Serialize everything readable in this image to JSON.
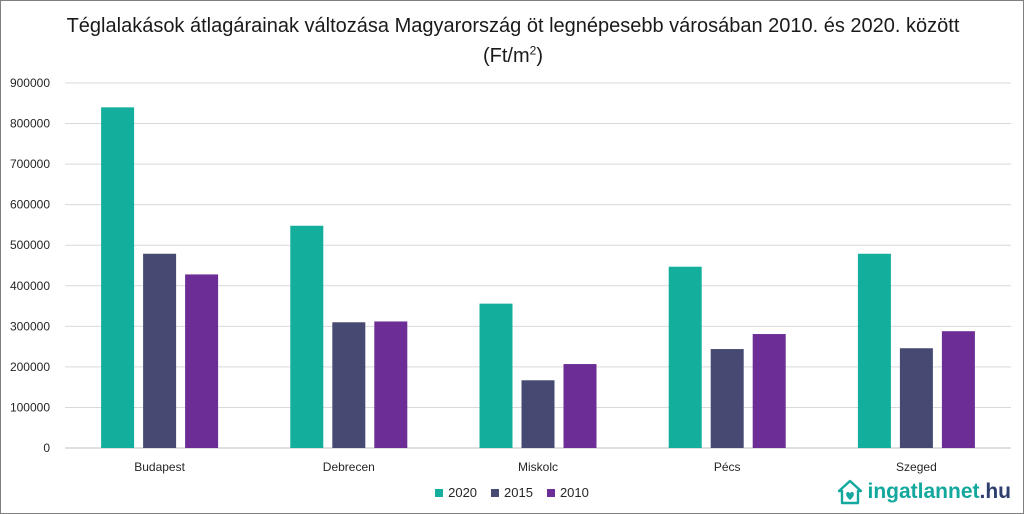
{
  "chart_data": {
    "type": "bar",
    "title": "Téglalakások átlagárainak változása Magyarország öt legnépesebb városában 2010. és 2020. között",
    "title_unit_base": "(Ft/m",
    "title_unit_exp": "2",
    "title_unit_close": ")",
    "categories": [
      "Budapest",
      "Debrecen",
      "Miskolc",
      "Pécs",
      "Szeged"
    ],
    "series": [
      {
        "name": "2020",
        "color": "#13ae9c",
        "values": [
          840000,
          548000,
          356000,
          447000,
          479000
        ]
      },
      {
        "name": "2015",
        "color": "#464a72",
        "values": [
          479000,
          310000,
          167000,
          244000,
          246000
        ]
      },
      {
        "name": "2010",
        "color": "#6c2d96",
        "values": [
          428000,
          312000,
          207000,
          281000,
          288000
        ]
      }
    ],
    "ylim": [
      0,
      900000
    ],
    "yticks": [
      "0",
      "100000",
      "200000",
      "300000",
      "400000",
      "500000",
      "600000",
      "700000",
      "800000",
      "900000"
    ],
    "grid": true,
    "legend_position": "bottom"
  },
  "logo": {
    "icon": "house-heart-icon",
    "brand": "ingatlannet",
    "tld": ".hu"
  }
}
